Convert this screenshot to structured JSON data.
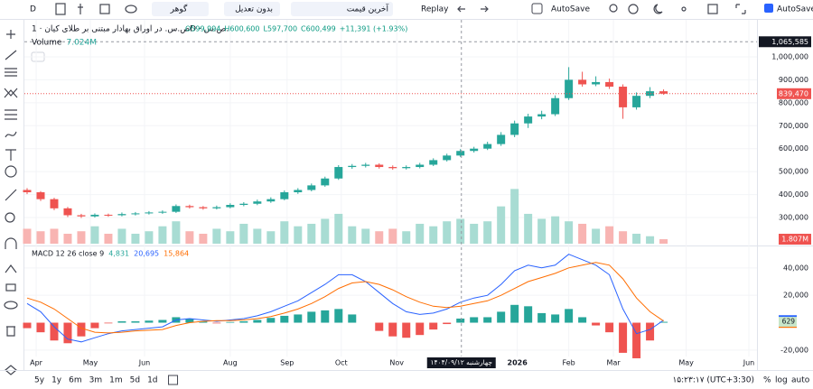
{
  "toolbar": {
    "symbol_button": "D",
    "search": "گوهر",
    "adjust": "بدون تعدیل",
    "price_type": "آخرین قیمت",
    "replay": "Replay",
    "autosave_menu": "AutoSave",
    "autosave_check": "AutoSave"
  },
  "chart_data": {
    "type": "candlestick",
    "title": "ص.س. در اوراق بهادار مبتنی بر طلای کیان · 1D · ص.س.",
    "ohlc_legend": [
      "O599,994",
      "H600,600",
      "L597,700",
      "C600,499",
      "+11,391 (+1.93%)"
    ],
    "up_color": "#26a69a",
    "down_color": "#ef5350",
    "ohlc": [
      [
        420000,
        428000,
        402000,
        410000
      ],
      [
        410000,
        415000,
        372000,
        380000
      ],
      [
        380000,
        386000,
        332000,
        340000
      ],
      [
        340000,
        346000,
        302000,
        310000
      ],
      [
        310000,
        316000,
        298000,
        305000
      ],
      [
        305000,
        318000,
        300000,
        312000
      ],
      [
        312000,
        317000,
        303000,
        310000
      ],
      [
        310000,
        322000,
        305000,
        315000
      ],
      [
        315000,
        324000,
        309000,
        318000
      ],
      [
        318000,
        328000,
        313000,
        322000
      ],
      [
        322000,
        331000,
        316000,
        325000
      ],
      [
        325000,
        357000,
        320000,
        350000
      ],
      [
        350000,
        356000,
        339000,
        345000
      ],
      [
        345000,
        350000,
        334000,
        340000
      ],
      [
        340000,
        352000,
        335000,
        345000
      ],
      [
        345000,
        362000,
        340000,
        355000
      ],
      [
        355000,
        367000,
        349000,
        360000
      ],
      [
        360000,
        378000,
        354000,
        370000
      ],
      [
        370000,
        388000,
        364000,
        380000
      ],
      [
        380000,
        418000,
        375000,
        410000
      ],
      [
        410000,
        428000,
        403000,
        420000
      ],
      [
        420000,
        448000,
        414000,
        440000
      ],
      [
        440000,
        478000,
        434000,
        470000
      ],
      [
        470000,
        528000,
        464000,
        520000
      ],
      [
        520000,
        533000,
        512000,
        525000
      ],
      [
        525000,
        538000,
        518000,
        530000
      ],
      [
        530000,
        536000,
        513000,
        520000
      ],
      [
        520000,
        527000,
        508000,
        515000
      ],
      [
        515000,
        527000,
        509000,
        520000
      ],
      [
        520000,
        538000,
        514000,
        530000
      ],
      [
        530000,
        558000,
        524000,
        550000
      ],
      [
        550000,
        578000,
        544000,
        570000
      ],
      [
        570000,
        598000,
        564000,
        590000
      ],
      [
        590000,
        608000,
        583000,
        600000
      ],
      [
        600000,
        630000,
        594000,
        620000
      ],
      [
        620000,
        672000,
        612000,
        660000
      ],
      [
        660000,
        722000,
        650000,
        710000
      ],
      [
        710000,
        752000,
        690000,
        740000
      ],
      [
        740000,
        765000,
        728000,
        750000
      ],
      [
        750000,
        832000,
        742000,
        820000
      ],
      [
        820000,
        955000,
        812000,
        900000
      ],
      [
        900000,
        935000,
        870000,
        880000
      ],
      [
        880000,
        915000,
        872000,
        890000
      ],
      [
        890000,
        905000,
        860000,
        870000
      ],
      [
        870000,
        880000,
        730000,
        780000
      ],
      [
        780000,
        845000,
        770000,
        830000
      ],
      [
        830000,
        868000,
        820000,
        850000
      ],
      [
        850000,
        858000,
        835000,
        839470
      ]
    ],
    "xlim": [
      -0.2,
      53.9
    ],
    "xticks": [
      {
        "value": 0.67,
        "label": "Apr"
      },
      {
        "value": 4.67,
        "label": "May"
      },
      {
        "value": 8.67,
        "label": "Jun"
      },
      {
        "value": 15,
        "label": "Aug"
      },
      {
        "value": 19.2,
        "label": "Sep"
      },
      {
        "value": 23.2,
        "label": "Oct"
      },
      {
        "value": 27.3,
        "label": "Nov"
      },
      {
        "value": 36.2,
        "label": "2026"
      },
      {
        "value": 40,
        "label": "Feb"
      },
      {
        "value": 43.3,
        "label": "Mar"
      },
      {
        "value": 48.67,
        "label": "May"
      },
      {
        "value": 53.3,
        "label": "Jun"
      }
    ],
    "ylim": [
      186000,
      1161000
    ],
    "yticks": [
      {
        "value": 300000,
        "label": "300,000"
      },
      {
        "value": 400000,
        "label": "400,000"
      },
      {
        "value": 500000,
        "label": "500,000"
      },
      {
        "value": 600000,
        "label": "600,000"
      },
      {
        "value": 700000,
        "label": "700,000"
      },
      {
        "value": 800000,
        "label": "800,000"
      },
      {
        "value": 900000,
        "label": "900,000"
      },
      {
        "value": 1000000,
        "label": "1,000,000"
      }
    ],
    "last_price": {
      "value": 839470,
      "label": "839,470"
    },
    "crosshair": {
      "x": 32.07,
      "y": 1065585,
      "x_label": "چهارشنبه ۱۴۰۴/۰۹/۱۲",
      "y_label": "1,065,585"
    },
    "volume": {
      "name": "Volume",
      "legend_value": "7.024M",
      "up_color": "#a8dcd3",
      "down_color": "#f8b4b2",
      "ylim": [
        0,
        90
      ],
      "values": [
        6,
        5,
        6,
        4,
        5,
        7,
        4,
        6,
        4,
        5,
        7,
        9,
        5,
        4,
        6,
        5,
        8,
        6,
        5,
        9,
        7,
        8,
        10,
        12,
        7,
        6,
        5,
        6,
        5,
        8,
        7,
        9,
        10,
        8,
        9,
        15,
        22,
        12,
        10,
        11,
        9,
        8,
        6,
        7,
        5,
        4,
        3,
        1.807
      ],
      "last_label": "1.807M"
    },
    "macd": {
      "name": "MACD 12 26 close 9",
      "legend_values": [
        "4,831",
        "20,695",
        "15,864"
      ],
      "ylim": [
        -24700,
        54400
      ],
      "yticks": [
        {
          "value": -20000,
          "label": "-20,000"
        },
        {
          "value": 20000,
          "label": "20,000"
        },
        {
          "value": 40000,
          "label": "40,000"
        }
      ],
      "macd_color": "#2962ff",
      "signal_color": "#ff6d00",
      "hist_up_color": "#26a69a",
      "hist_down_color": "#ef5350",
      "macd_values": [
        14000,
        8000,
        -3000,
        -12000,
        -14000,
        -11000,
        -8000,
        -6000,
        -5000,
        -4000,
        -3000,
        2000,
        3000,
        2000,
        1000,
        2000,
        3000,
        5000,
        8000,
        12000,
        16000,
        22000,
        28000,
        35000,
        35000,
        30000,
        22000,
        14000,
        8000,
        6000,
        7000,
        10000,
        15000,
        18000,
        20000,
        28000,
        38000,
        42000,
        40000,
        42000,
        50000,
        46000,
        42000,
        35000,
        10000,
        -8000,
        -5000,
        1824
      ],
      "signal_values": [
        18000,
        15000,
        10000,
        3000,
        -4000,
        -7000,
        -7500,
        -7000,
        -6000,
        -5500,
        -5000,
        -2000,
        0,
        1000,
        1500,
        1500,
        2000,
        3000,
        4500,
        7000,
        10000,
        14000,
        19000,
        25000,
        29000,
        30000,
        28000,
        24000,
        19000,
        15000,
        12000,
        11000,
        12000,
        14000,
        16000,
        20000,
        25000,
        30000,
        33000,
        36000,
        40000,
        42000,
        44000,
        42000,
        32000,
        18000,
        8000,
        1195
      ],
      "hist_values": [
        -4000,
        -7000,
        -13000,
        -15000,
        -10000,
        -4000,
        -500,
        1000,
        1000,
        1500,
        2000,
        4000,
        3000,
        1000,
        -500,
        500,
        1000,
        2000,
        3500,
        5000,
        6000,
        8000,
        9000,
        10000,
        6000,
        0,
        -6000,
        -10000,
        -11000,
        -9000,
        -5000,
        -1000,
        3000,
        4000,
        4000,
        8000,
        13000,
        12000,
        7000,
        6000,
        10000,
        4000,
        -2000,
        -7000,
        -22000,
        -26000,
        -13000,
        629
      ],
      "last_labels": [
        {
          "value": 1824,
          "label": "1,824"
        },
        {
          "value": 1195,
          "label": "1,195"
        },
        {
          "value": 629,
          "label": "629"
        }
      ]
    }
  },
  "bottom_bar": {
    "ranges": [
      "5y",
      "1y",
      "6m",
      "3m",
      "1m",
      "5d",
      "1d"
    ],
    "clock": "۱۵:۲۳:۱۷ (UTC+3:30)",
    "percent": "%",
    "log": "log",
    "auto": "auto"
  }
}
